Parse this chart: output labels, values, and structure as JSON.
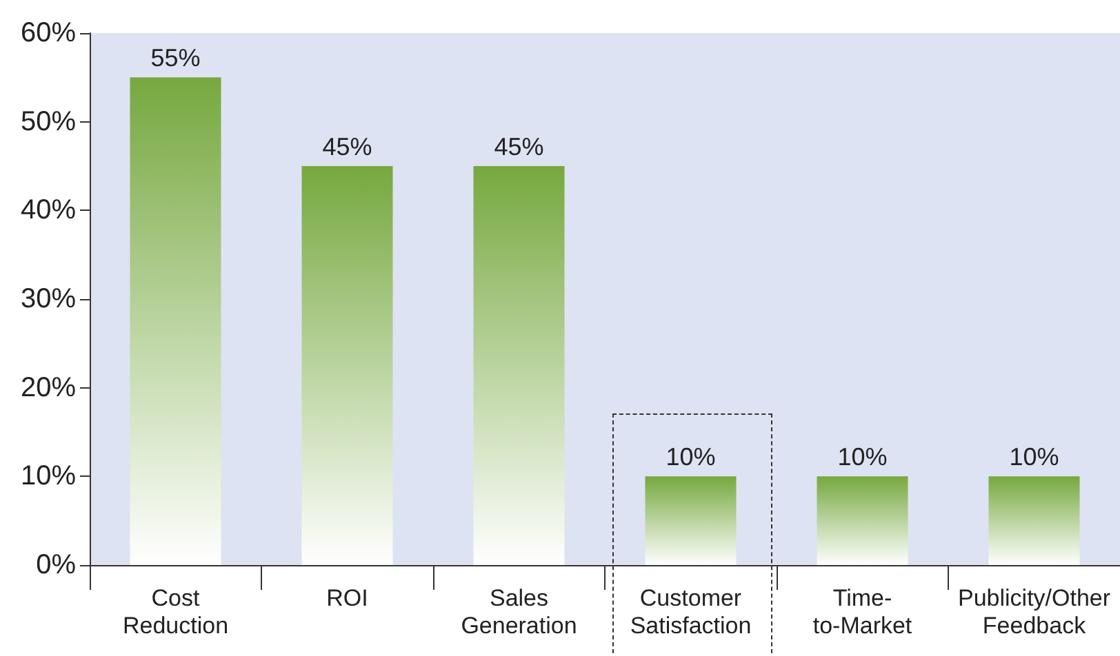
{
  "chart_data": {
    "type": "bar",
    "categories": [
      "Cost\nReduction",
      "ROI",
      "Sales\nGeneration",
      "Customer\nSatisfaction",
      "Time-\nto-Market",
      "Publicity/Other\nFeedback"
    ],
    "values": [
      55,
      45,
      45,
      10,
      10,
      10
    ],
    "value_labels": [
      "55%",
      "45%",
      "45%",
      "10%",
      "10%",
      "10%"
    ],
    "color": "#76a83f",
    "ylim": [
      0,
      60
    ],
    "yticks": [
      {
        "value": 0,
        "label": "0%"
      },
      {
        "value": 10,
        "label": "10%"
      },
      {
        "value": 20,
        "label": "20%"
      },
      {
        "value": 30,
        "label": "30%"
      },
      {
        "value": 40,
        "label": "40%"
      },
      {
        "value": 50,
        "label": "50%"
      },
      {
        "value": 60,
        "label": "60%"
      }
    ],
    "grid": false
  }
}
